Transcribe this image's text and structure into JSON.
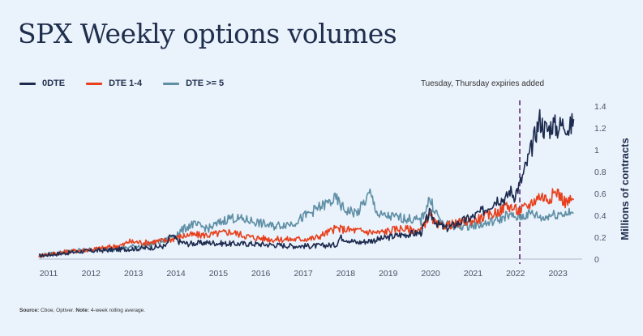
{
  "title": "SPX Weekly options volumes",
  "footnote": {
    "source_label": "Source:",
    "source_text": "Cboe, Optiver.",
    "note_label": "Note:",
    "note_text": "4-week rolling average."
  },
  "chart_data": {
    "type": "line",
    "title": "SPX Weekly options volumes",
    "xlabel": "",
    "ylabel": "Millions of contracts",
    "xlim": [
      2011,
      2023.8
    ],
    "ylim": [
      0,
      1.4
    ],
    "x_ticks": [
      "2011",
      "2012",
      "2013",
      "2014",
      "2015",
      "2016",
      "2017",
      "2018",
      "2019",
      "2020",
      "2021",
      "2022",
      "2023"
    ],
    "y_ticks": [
      "0",
      "0.2",
      "0.4",
      "0.6",
      "0.8",
      "1",
      "1.2",
      "1.4"
    ],
    "legend_position": "top-left",
    "grid": false,
    "annotation": {
      "text": "Tuesday, Thursday expiries added",
      "x": 2022.33,
      "style": "dashed-vertical",
      "color": "#5b2a6e"
    },
    "series": [
      {
        "name": "0DTE",
        "color": "#1d2b4f",
        "points": [
          [
            2011.0,
            0.03
          ],
          [
            2011.5,
            0.05
          ],
          [
            2012.0,
            0.07
          ],
          [
            2012.5,
            0.08
          ],
          [
            2013.0,
            0.09
          ],
          [
            2013.5,
            0.1
          ],
          [
            2014.0,
            0.12
          ],
          [
            2014.1,
            0.22
          ],
          [
            2014.3,
            0.16
          ],
          [
            2014.5,
            0.14
          ],
          [
            2015.0,
            0.15
          ],
          [
            2015.5,
            0.14
          ],
          [
            2016.0,
            0.14
          ],
          [
            2016.5,
            0.13
          ],
          [
            2017.0,
            0.12
          ],
          [
            2017.5,
            0.12
          ],
          [
            2018.0,
            0.13
          ],
          [
            2018.1,
            0.2
          ],
          [
            2018.5,
            0.15
          ],
          [
            2019.0,
            0.18
          ],
          [
            2019.5,
            0.22
          ],
          [
            2020.0,
            0.24
          ],
          [
            2020.2,
            0.42
          ],
          [
            2020.4,
            0.32
          ],
          [
            2020.6,
            0.28
          ],
          [
            2021.0,
            0.35
          ],
          [
            2021.2,
            0.38
          ],
          [
            2021.5,
            0.45
          ],
          [
            2021.8,
            0.55
          ],
          [
            2022.0,
            0.55
          ],
          [
            2022.1,
            0.63
          ],
          [
            2022.2,
            0.58
          ],
          [
            2022.35,
            0.7
          ],
          [
            2022.5,
            0.88
          ],
          [
            2022.6,
            1.0
          ],
          [
            2022.7,
            1.15
          ],
          [
            2022.8,
            1.28
          ],
          [
            2022.9,
            1.2
          ],
          [
            2023.0,
            1.18
          ],
          [
            2023.1,
            1.24
          ],
          [
            2023.2,
            1.2
          ],
          [
            2023.3,
            1.22
          ],
          [
            2023.4,
            1.25
          ],
          [
            2023.5,
            1.18
          ],
          [
            2023.6,
            1.28
          ]
        ]
      },
      {
        "name": "DTE 1-4",
        "color": "#e8401c",
        "points": [
          [
            2011.0,
            0.03
          ],
          [
            2011.5,
            0.06
          ],
          [
            2012.0,
            0.08
          ],
          [
            2012.5,
            0.1
          ],
          [
            2013.0,
            0.13
          ],
          [
            2013.1,
            0.16
          ],
          [
            2013.5,
            0.15
          ],
          [
            2014.0,
            0.17
          ],
          [
            2014.5,
            0.22
          ],
          [
            2015.0,
            0.22
          ],
          [
            2015.5,
            0.25
          ],
          [
            2016.0,
            0.2
          ],
          [
            2016.5,
            0.18
          ],
          [
            2017.0,
            0.18
          ],
          [
            2017.5,
            0.19
          ],
          [
            2018.0,
            0.28
          ],
          [
            2018.5,
            0.26
          ],
          [
            2019.0,
            0.24
          ],
          [
            2019.5,
            0.28
          ],
          [
            2020.0,
            0.26
          ],
          [
            2020.2,
            0.4
          ],
          [
            2020.4,
            0.3
          ],
          [
            2020.8,
            0.32
          ],
          [
            2021.0,
            0.34
          ],
          [
            2021.3,
            0.36
          ],
          [
            2021.6,
            0.4
          ],
          [
            2021.9,
            0.45
          ],
          [
            2022.0,
            0.5
          ],
          [
            2022.3,
            0.44
          ],
          [
            2022.5,
            0.48
          ],
          [
            2022.8,
            0.58
          ],
          [
            2023.0,
            0.55
          ],
          [
            2023.2,
            0.62
          ],
          [
            2023.4,
            0.52
          ],
          [
            2023.6,
            0.54
          ]
        ]
      },
      {
        "name": "DTE >= 5",
        "color": "#5f8fa5",
        "points": [
          [
            2011.0,
            0.03
          ],
          [
            2011.5,
            0.06
          ],
          [
            2012.0,
            0.08
          ],
          [
            2012.5,
            0.09
          ],
          [
            2013.0,
            0.1
          ],
          [
            2013.5,
            0.13
          ],
          [
            2014.0,
            0.17
          ],
          [
            2014.6,
            0.32
          ],
          [
            2015.0,
            0.28
          ],
          [
            2015.5,
            0.38
          ],
          [
            2016.0,
            0.35
          ],
          [
            2016.5,
            0.3
          ],
          [
            2017.0,
            0.33
          ],
          [
            2017.5,
            0.45
          ],
          [
            2018.0,
            0.55
          ],
          [
            2018.2,
            0.45
          ],
          [
            2018.5,
            0.42
          ],
          [
            2018.8,
            0.6
          ],
          [
            2019.0,
            0.4
          ],
          [
            2019.5,
            0.38
          ],
          [
            2020.0,
            0.35
          ],
          [
            2020.2,
            0.55
          ],
          [
            2020.5,
            0.32
          ],
          [
            2020.8,
            0.3
          ],
          [
            2021.0,
            0.3
          ],
          [
            2021.5,
            0.32
          ],
          [
            2021.9,
            0.37
          ],
          [
            2022.0,
            0.4
          ],
          [
            2022.3,
            0.38
          ],
          [
            2022.6,
            0.42
          ],
          [
            2022.9,
            0.37
          ],
          [
            2023.0,
            0.4
          ],
          [
            2023.3,
            0.42
          ],
          [
            2023.6,
            0.42
          ]
        ]
      }
    ]
  }
}
